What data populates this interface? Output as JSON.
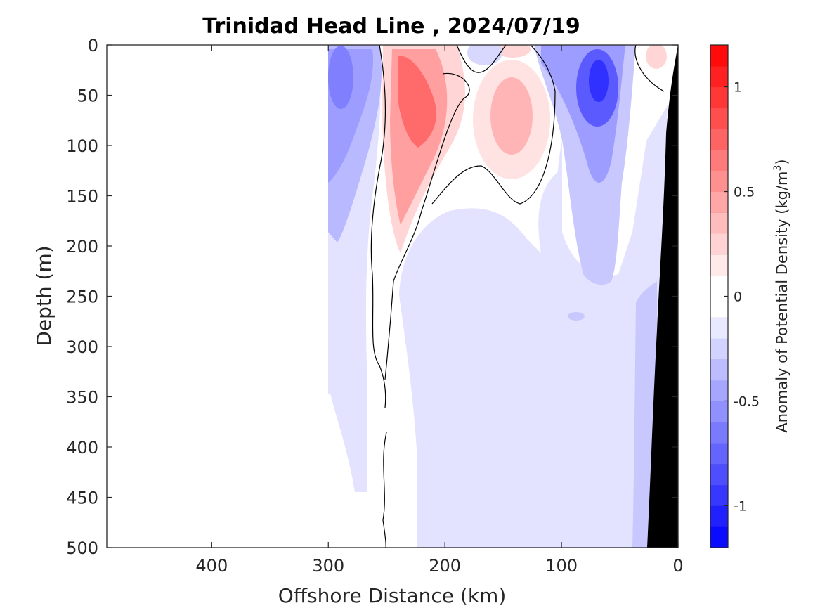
{
  "chart_data": {
    "type": "heatmap",
    "title": "Trinidad Head Line , 2024/07/19",
    "xlabel": "Offshore Distance (km)",
    "ylabel": "Depth (m)",
    "xlim": [
      490,
      0
    ],
    "ylim": [
      0,
      500
    ],
    "x_ticks": [
      400,
      300,
      200,
      100,
      0
    ],
    "y_ticks": [
      0,
      50,
      100,
      150,
      200,
      250,
      300,
      350,
      400,
      450,
      500
    ],
    "colorbar": {
      "label": "Anomaly of Potential Density (kg/m",
      "label_superscript": "3",
      "label_suffix": ")",
      "range": [
        -1.2,
        1.2
      ],
      "step": 0.1,
      "ticks": [
        {
          "value": 1,
          "label": "1"
        },
        {
          "value": 0.5,
          "label": "0.5"
        },
        {
          "value": 0,
          "label": "0"
        },
        {
          "value": -0.5,
          "label": "-0.5"
        },
        {
          "value": -1,
          "label": "-1"
        }
      ],
      "colors": {
        "negative": "#0000ff",
        "positive": "#ff0000",
        "neutral": "#ffffff"
      }
    },
    "data_coverage_km": [
      0,
      300
    ],
    "bathymetry_color": "#000000",
    "regions": [
      {
        "name": "offshore-negative-core",
        "x": [
          300,
          250
        ],
        "depth": [
          0,
          200
        ],
        "anomaly": -0.4
      },
      {
        "name": "offshore-negative-tail",
        "x": [
          300,
          265
        ],
        "depth": [
          200,
          500
        ],
        "anomaly": -0.1
      },
      {
        "name": "positive-core-west",
        "x": [
          255,
          185
        ],
        "depth": [
          0,
          210
        ],
        "anomaly": 0.6
      },
      {
        "name": "positive-core-mid",
        "x": [
          175,
          115
        ],
        "depth": [
          30,
          120
        ],
        "anomaly": 0.3
      },
      {
        "name": "negative-core-nearshore",
        "x": [
          110,
          45
        ],
        "depth": [
          0,
          240
        ],
        "anomaly": -0.9
      },
      {
        "name": "positive-surface-nearshore",
        "x": [
          30,
          5
        ],
        "depth": [
          0,
          20
        ],
        "anomaly": 0.2
      },
      {
        "name": "deep-negative-field",
        "x": [
          225,
          25
        ],
        "depth": [
          150,
          500
        ],
        "anomaly": -0.1
      },
      {
        "name": "slope-negative-band",
        "x": [
          45,
          25
        ],
        "depth": [
          250,
          500
        ],
        "anomaly": -0.2
      }
    ],
    "zero_contour": true
  }
}
